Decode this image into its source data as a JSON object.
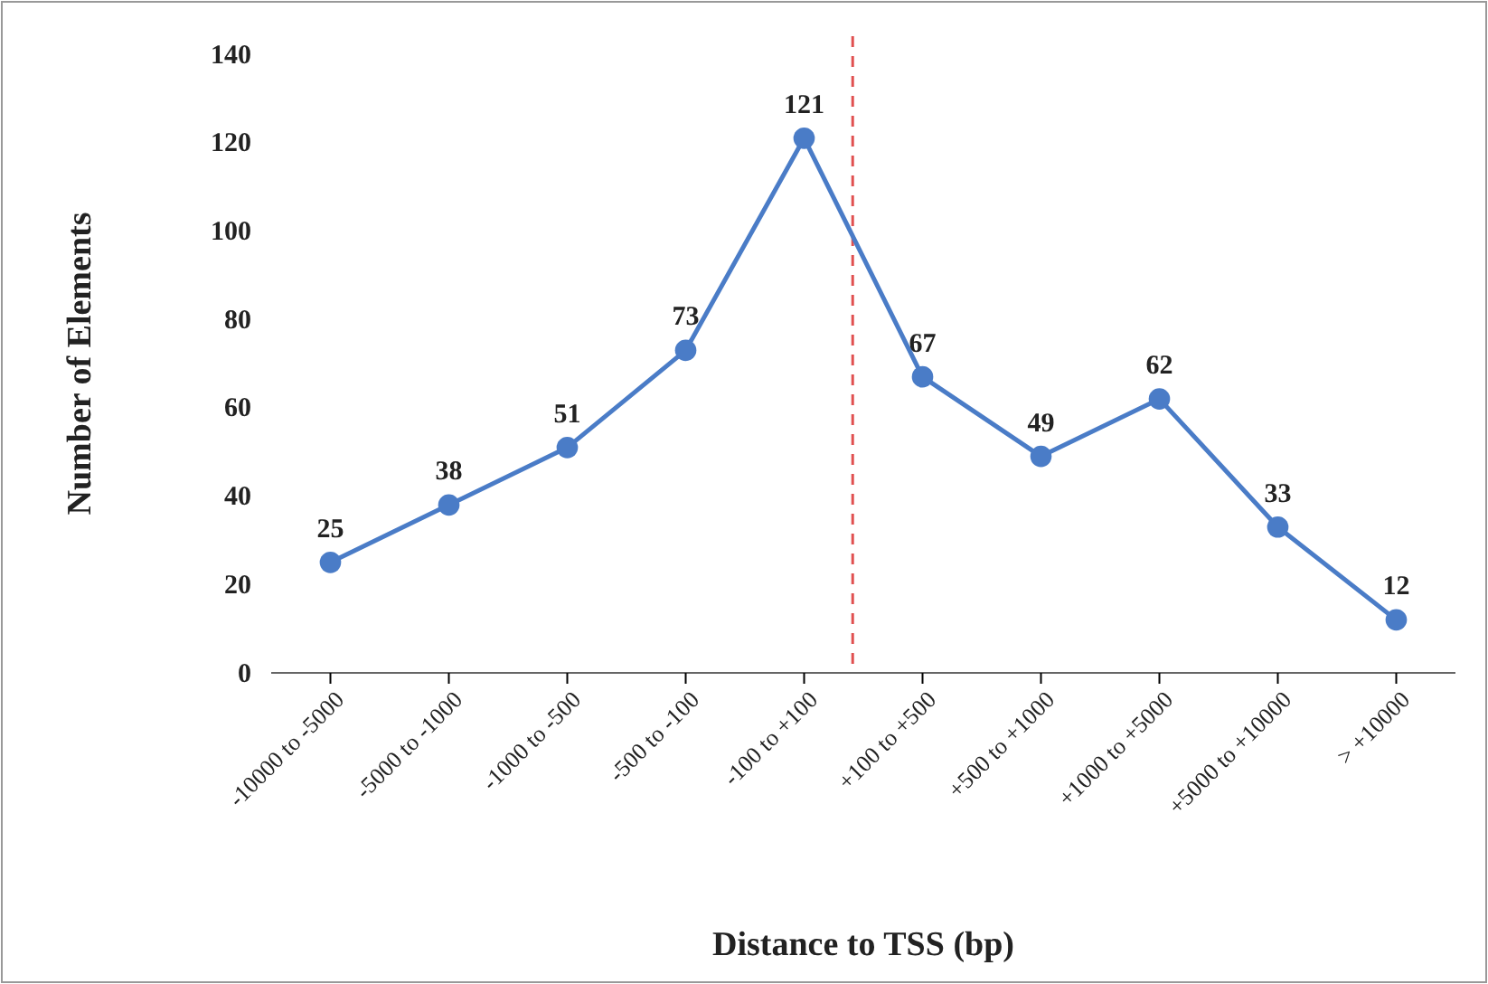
{
  "chart_data": {
    "type": "line",
    "xlabel": "Distance to TSS (bp)",
    "ylabel": "Number of Elements",
    "categories": [
      "-10000 to -5000",
      "-5000 to -1000",
      "-1000 to -500",
      "-500 to -100",
      "-100 to +100",
      "+100 to +500",
      "+500 to +1000",
      "+1000 to +5000",
      "+5000 to +10000",
      "> +10000"
    ],
    "series": [
      {
        "color": "#4a7cc7",
        "values": [
          25,
          38,
          51,
          73,
          121,
          67,
          49,
          62,
          33,
          12
        ]
      }
    ],
    "ylim": [
      0,
      140
    ],
    "yticks": [
      0,
      20,
      40,
      60,
      80,
      100,
      120,
      140
    ],
    "data_labels": true,
    "marker": "circle",
    "line_style": "solid"
  }
}
